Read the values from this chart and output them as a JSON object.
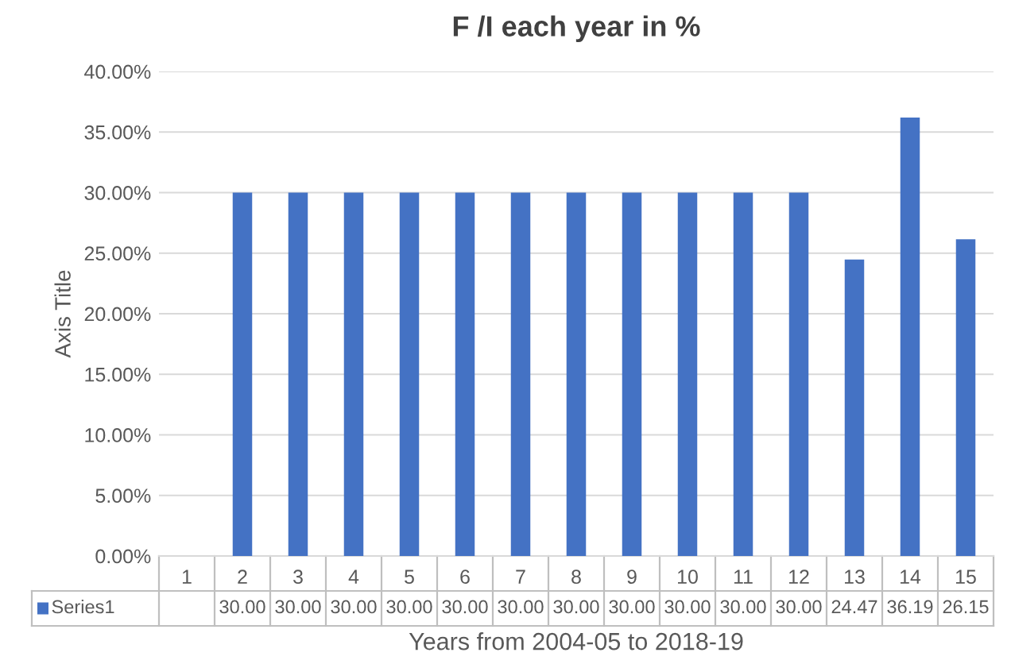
{
  "chart_data": {
    "type": "bar",
    "title": "F /I each year in %",
    "xlabel": "Years from 2004-05 to 2018-19",
    "ylabel": "Axis Title",
    "categories": [
      "1",
      "2",
      "3",
      "4",
      "5",
      "6",
      "7",
      "8",
      "9",
      "10",
      "11",
      "12",
      "13",
      "14",
      "15"
    ],
    "series": [
      {
        "name": "Series1",
        "color": "#4472c4",
        "values": [
          null,
          30.0,
          30.0,
          30.0,
          30.0,
          30.0,
          30.0,
          30.0,
          30.0,
          30.0,
          30.0,
          30.0,
          24.47,
          36.19,
          26.15
        ],
        "value_labels": [
          null,
          "30.00",
          "30.00",
          "30.00",
          "30.00",
          "30.00",
          "30.00",
          "30.00",
          "30.00",
          "30.00",
          "30.00",
          "30.00",
          "24.47",
          "36.19",
          "26.15"
        ]
      }
    ],
    "ylim": [
      0,
      40
    ],
    "yticks": [
      {
        "value": 0,
        "label": "0.00%"
      },
      {
        "value": 5,
        "label": "5.00%"
      },
      {
        "value": 10,
        "label": "10.00%"
      },
      {
        "value": 15,
        "label": "15.00%"
      },
      {
        "value": 20,
        "label": "20.00%"
      },
      {
        "value": 25,
        "label": "25.00%"
      },
      {
        "value": 30,
        "label": "30.00%"
      },
      {
        "value": 35,
        "label": "35.00%"
      },
      {
        "value": 40,
        "label": "40.00%"
      }
    ],
    "grid": "y"
  }
}
